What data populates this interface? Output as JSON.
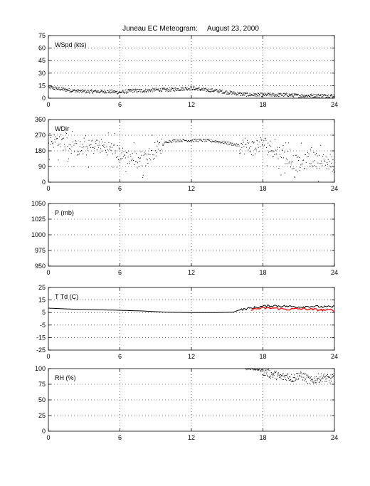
{
  "title": "Juneau EC Meteogram:     August 23, 2000",
  "chart_data": [
    {
      "type": "scatter",
      "ylabel": "WSpd (kts)",
      "xlim": [
        0,
        24
      ],
      "ylim": [
        0,
        75
      ],
      "xticks": [
        "0",
        "6",
        "12",
        "18",
        "24"
      ],
      "yticks": [
        "0",
        "15",
        "30",
        "45",
        "60",
        "75"
      ],
      "grid": true,
      "series": [
        {
          "color": "#000000",
          "x": [
            0,
            1,
            2,
            3,
            4,
            5,
            6,
            7,
            8,
            9,
            10,
            11,
            12,
            13,
            14,
            15,
            16,
            17,
            18,
            19,
            20,
            21,
            22,
            23,
            24
          ],
          "y": [
            13,
            11,
            9,
            8,
            8,
            8,
            7,
            9,
            9,
            10,
            10,
            11,
            12,
            10,
            9,
            7,
            5,
            4,
            4,
            4,
            4,
            3,
            3,
            3,
            3
          ]
        }
      ]
    },
    {
      "type": "scatter",
      "ylabel": "WDir",
      "xlim": [
        0,
        24
      ],
      "ylim": [
        0,
        360
      ],
      "xticks": [
        "0",
        "6",
        "12",
        "18",
        "24"
      ],
      "yticks": [
        "0",
        "90",
        "180",
        "270",
        "360"
      ],
      "grid": true,
      "series": [
        {
          "color": "#000000",
          "x": [
            0,
            1,
            2,
            3,
            4,
            5,
            6,
            7,
            8,
            9,
            10,
            11,
            12,
            13,
            14,
            15,
            16,
            17,
            18,
            19,
            20,
            21,
            22,
            23,
            24
          ],
          "y": [
            245,
            235,
            200,
            190,
            210,
            200,
            160,
            140,
            130,
            190,
            235,
            240,
            240,
            240,
            235,
            225,
            210,
            200,
            225,
            180,
            140,
            100,
            130,
            120,
            100
          ]
        }
      ]
    },
    {
      "type": "line",
      "ylabel": "P (mb)",
      "xlim": [
        0,
        24
      ],
      "ylim": [
        950,
        1050
      ],
      "xticks": [
        "0",
        "6",
        "12",
        "18",
        "24"
      ],
      "yticks": [
        "950",
        "975",
        "1000",
        "1025",
        "1050"
      ],
      "grid": true,
      "series": []
    },
    {
      "type": "line",
      "ylabel": "T Td (C)",
      "xlim": [
        0,
        24
      ],
      "ylim": [
        -25,
        25
      ],
      "xticks": [
        "0",
        "6",
        "12",
        "18",
        "24"
      ],
      "yticks": [
        "-25",
        "-15",
        "-5",
        "5",
        "15",
        "25"
      ],
      "grid": true,
      "series": [
        {
          "color": "#000000",
          "x": [
            0,
            2,
            4,
            6,
            8,
            10,
            12,
            14,
            15.5,
            16,
            17,
            18,
            19,
            20,
            21,
            22,
            23,
            24
          ],
          "y": [
            8.5,
            7.7,
            7.2,
            6.8,
            6.2,
            5.2,
            5,
            5,
            5.2,
            7,
            8.5,
            10,
            10.5,
            10,
            9.5,
            10,
            9.5,
            9.5
          ]
        },
        {
          "color": "#ff0000",
          "x": [
            17,
            18,
            19,
            20,
            21,
            22,
            23,
            24
          ],
          "y": [
            7.5,
            8.5,
            8.5,
            7.5,
            8,
            7.5,
            7,
            7
          ]
        }
      ]
    },
    {
      "type": "scatter",
      "ylabel": "RH (%)",
      "xlim": [
        0,
        24
      ],
      "ylim": [
        0,
        100
      ],
      "xticks": [
        "0",
        "6",
        "12",
        "18",
        "24"
      ],
      "yticks": [
        "0",
        "25",
        "50",
        "75",
        "100"
      ],
      "grid": true,
      "series": [
        {
          "color": "#000000",
          "x": [
            16.5,
            17,
            17.5,
            18,
            18.5,
            19,
            19.5,
            20,
            20.5,
            21,
            21.5,
            22,
            22.5,
            23,
            23.5,
            24
          ],
          "y": [
            100,
            100,
            99,
            96,
            92,
            90,
            86,
            88,
            84,
            90,
            86,
            80,
            84,
            86,
            83,
            85
          ]
        }
      ]
    }
  ]
}
